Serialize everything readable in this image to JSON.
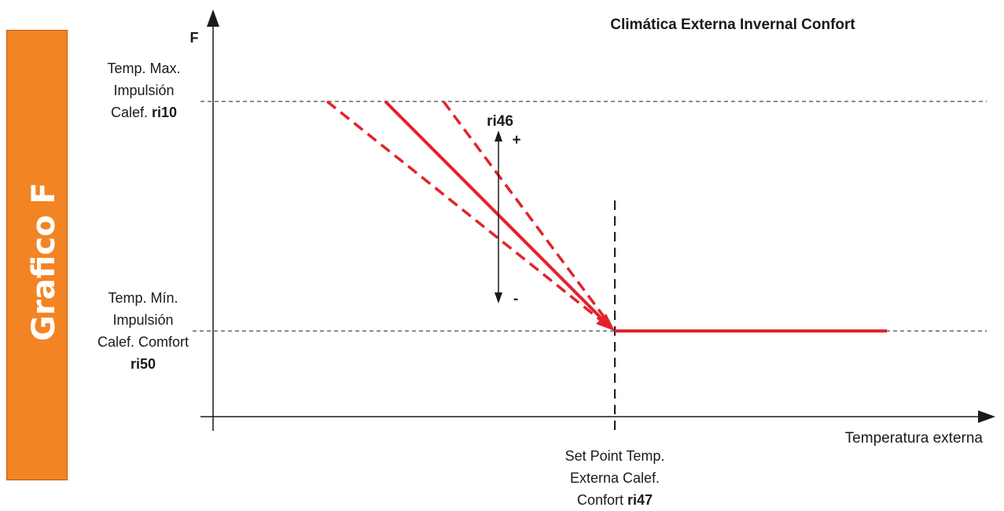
{
  "side_tab": {
    "text": "Grafico  F"
  },
  "title": "Climática Externa Invernal Confort",
  "y_axis_label": "F",
  "x_axis_label": "Temperatura externa",
  "max_label": {
    "line1": "Temp. Max.",
    "line2": "Impulsión",
    "line3": "Calef. ",
    "code": "ri10"
  },
  "min_label": {
    "line1": "Temp. Mín.",
    "line2": "Impulsión",
    "line3": "Calef. Comfort",
    "code": "ri50"
  },
  "setpoint_label": {
    "line1": "Set Point Temp.",
    "line2": "Externa Calef.",
    "line3": "Confort ",
    "code": "ri47"
  },
  "slope_label": {
    "code": "ri46",
    "plus": "+",
    "minus": "-"
  },
  "colors": {
    "curve": "#e3222a",
    "tab": "#f38424",
    "axis": "#1a1a1a"
  }
}
